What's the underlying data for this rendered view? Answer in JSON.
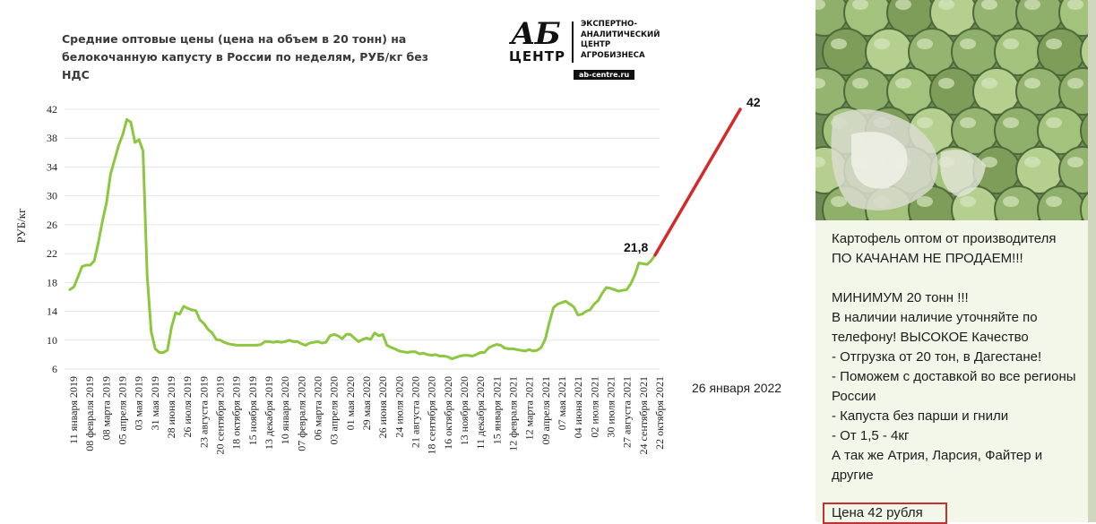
{
  "chart_data": {
    "type": "line",
    "title": "Средние оптовые цены (цена на объем в 20 тонн) на белокочанную капусту в России по неделям, РУБ/кг без НДС",
    "ylabel": "РУБ/кг",
    "ylim": [
      6,
      42
    ],
    "yticks": [
      "42",
      "38",
      "34",
      "30",
      "26",
      "22",
      "18",
      "14",
      "10",
      "6"
    ],
    "grid": true,
    "xticks": [
      "11 января 2019",
      "08 февраля 2019",
      "08 марта 2019",
      "05 апреля 2019",
      "03 мая 2019",
      "31 мая 2019",
      "28 июня 2019",
      "26 июля 2019",
      "23 августа 2019",
      "20 сентября 2019",
      "18 октября 2019",
      "15 ноября 2019",
      "13 декабря 2019",
      "10 января 2020",
      "07 февраля 2020",
      "06 марта 2020",
      "03 апреля 2020",
      "01 мая 2020",
      "29 мая 2020",
      "26 июня 2020",
      "24 июля 2020",
      "21 августа 2020",
      "18 сентября 2020",
      "16 октября 2020",
      "13 ноября 2020",
      "11 декабря 2020",
      "15 января 2021",
      "12 февраля 2021",
      "12 марта 2021",
      "09 апреля 2021",
      "07 мая 2021",
      "04 июня 2021",
      "02 июля 2021",
      "30 июля 2021",
      "27 августа 2021",
      "24 сентября 2021",
      "22 октября 2021"
    ],
    "series": [
      {
        "color": "#8dc63f",
        "values": [
          17,
          17.4,
          18.8,
          20.2,
          20.4,
          20.4,
          21,
          23.5,
          26.5,
          29,
          33,
          35,
          37,
          38.5,
          40.6,
          40.2,
          37.4,
          37.8,
          36.2,
          19,
          11.2,
          8.8,
          8.3,
          8.3,
          8.6,
          11.8,
          13.8,
          13.6,
          14.7,
          14.4,
          14.2,
          14.1,
          12.8,
          12.3,
          11.5,
          11,
          10.1,
          10,
          9.7,
          9.5,
          9.4,
          9.3,
          9.3,
          9.3,
          9.3,
          9.3,
          9.3,
          9.4,
          9.8,
          9.8,
          9.7,
          9.8,
          9.7,
          9.8,
          10,
          9.8,
          9.8,
          9.5,
          9.3,
          9.6,
          9.7,
          9.8,
          9.6,
          9.7,
          10.6,
          10.8,
          10.6,
          10.2,
          10.8,
          10.8,
          10.3,
          9.8,
          10.1,
          10.3,
          10.1,
          11,
          10.6,
          10.8,
          9.3,
          9,
          8.8,
          8.5,
          8.4,
          8.3,
          8.4,
          8.4,
          8.1,
          8.2,
          8,
          7.9,
          8,
          7.8,
          7.8,
          7.7,
          7.4,
          7.6,
          7.8,
          7.9,
          7.9,
          7.8,
          8,
          8.3,
          8.3,
          8.9,
          9.2,
          9.4,
          9.3,
          8.9,
          8.8,
          8.8,
          8.7,
          8.6,
          8.5,
          8.7,
          8.5,
          8.6,
          9,
          10.2,
          12.5,
          14.5,
          15,
          15.2,
          15.4,
          15,
          14.6,
          13.5,
          13.6,
          14,
          14.2,
          15,
          15.5,
          16.5,
          17.3,
          17.2,
          17,
          16.8,
          16.9,
          17,
          17.8,
          19,
          20.7,
          20.6,
          20.5,
          21,
          21.8
        ]
      },
      {
        "color": "#d42a2a",
        "values": [
          21.8,
          42
        ]
      }
    ],
    "annotations": [
      "21,8",
      "42"
    ]
  },
  "logo": {
    "ab": "АБ",
    "centr": "ЦЕНТР",
    "line1": "ЭКСПЕРТНО-",
    "line2": "АНАЛИТИЧЕСКИЙ",
    "line3": "ЦЕНТР",
    "line4": "АГРОБИЗНЕСА",
    "url": "ab-centre.ru"
  },
  "date_note": "26 января 2022",
  "message": {
    "text": "Картофель оптом от производителя\nПО КАЧАНАМ НЕ ПРОДАЕМ!!!\n\nМИНИМУМ 20 тонн !!!\nВ наличии наличие уточняйте по телефону! ВЫСОКОЕ Качество\n- Отгрузка от 20 тон, в Дагестане!\n- Поможем с доставкой во все регионы России\n- Капуста без парши и гнили\n- От 1,5 - 4кг\nА так же Атрия, Ларсия, Файтер и другие",
    "price": "Цена 42 рубля"
  },
  "colors": {
    "line": "#8dc63f",
    "extrapolation": "#d42a2a",
    "highlight_box": "#c53030",
    "bubble": "#f3f7ea"
  },
  "photo_icon": "cabbage-photo"
}
